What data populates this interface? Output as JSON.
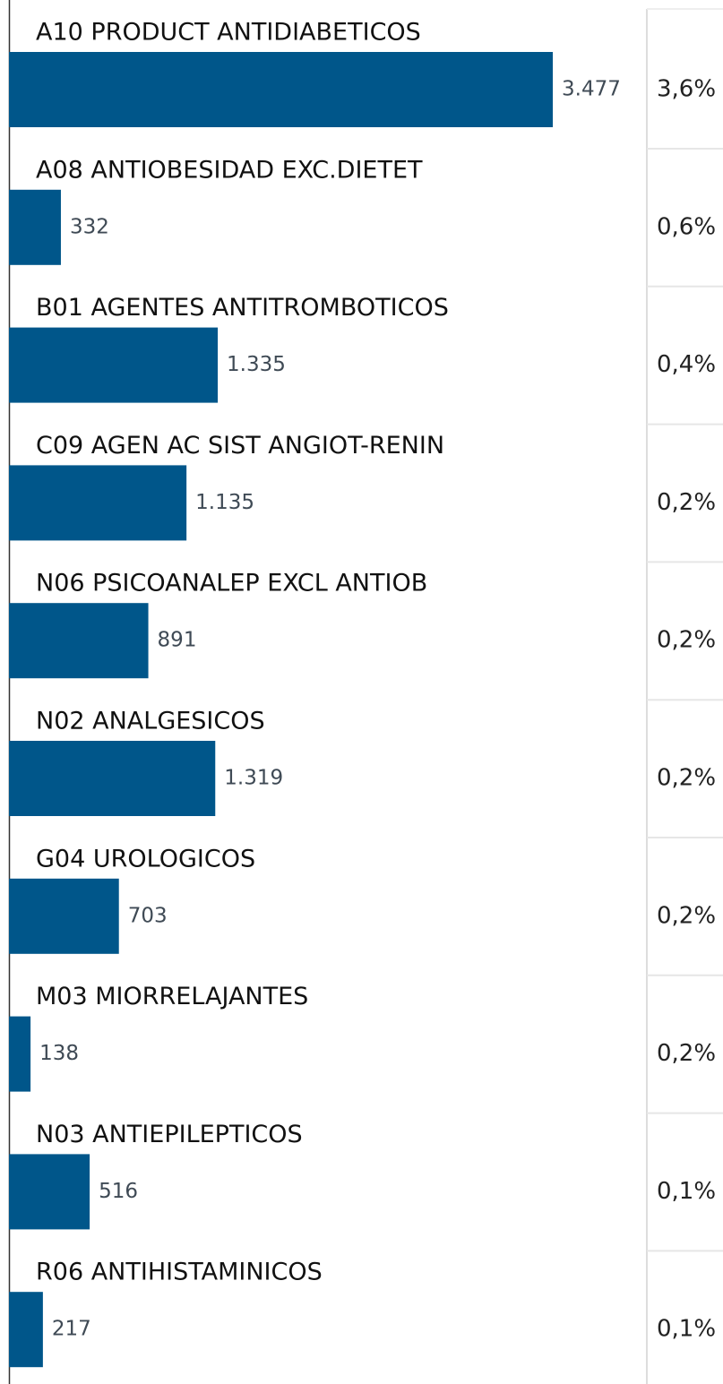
{
  "chart_data": {
    "type": "bar",
    "orientation": "horizontal",
    "color": "#00568a",
    "categories": [
      "A10 PRODUCT ANTIDIABETICOS",
      "A08 ANTIOBESIDAD EXC.DIETET",
      "B01 AGENTES ANTITROMBOTICOS",
      "C09 AGEN AC SIST ANGIOT-RENIN",
      "N06 PSICOANALEP EXCL ANTIOB",
      "N02 ANALGESICOS",
      "G04 UROLOGICOS",
      "M03 MIORRELAJANTES",
      "N03 ANTIEPILEPTICOS",
      "R06 ANTIHISTAMINICOS"
    ],
    "values": [
      3477,
      332,
      1335,
      1135,
      891,
      1319,
      703,
      138,
      516,
      217
    ],
    "value_labels": [
      "3.477",
      "332",
      "1.335",
      "1.135",
      "891",
      "1.319",
      "703",
      "138",
      "516",
      "217"
    ],
    "share_values": [
      3.6,
      0.6,
      0.4,
      0.2,
      0.2,
      0.2,
      0.2,
      0.2,
      0.1,
      0.1
    ],
    "share_labels": [
      "3,6%",
      "0,6%",
      "0,4%",
      "0,2%",
      "0,2%",
      "0,2%",
      "0,2%",
      "0,2%",
      "0,1%",
      "0,1%"
    ]
  }
}
